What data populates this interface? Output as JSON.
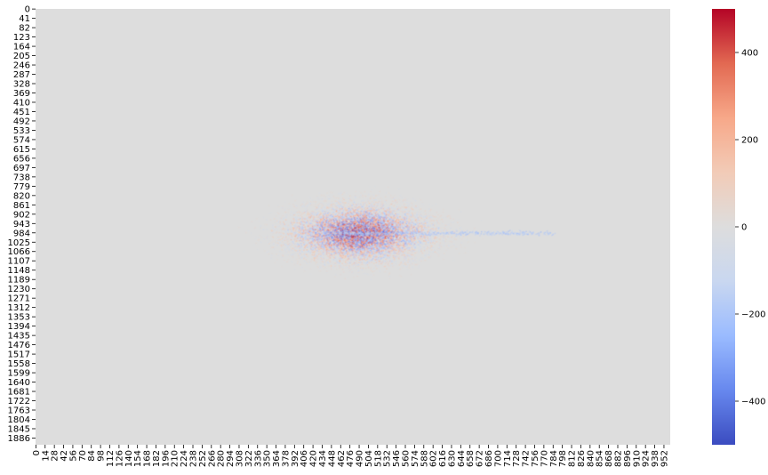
{
  "chart_data": {
    "type": "heatmap",
    "title": "",
    "xlabel": "",
    "ylabel": "",
    "rows": 1916,
    "cols": 962,
    "y_ticks": [
      "0",
      "41",
      "82",
      "123",
      "164",
      "205",
      "246",
      "287",
      "328",
      "369",
      "410",
      "451",
      "492",
      "533",
      "574",
      "615",
      "656",
      "697",
      "738",
      "779",
      "820",
      "861",
      "902",
      "943",
      "984",
      "1025",
      "1066",
      "1107",
      "1148",
      "1189",
      "1230",
      "1271",
      "1312",
      "1353",
      "1394",
      "1435",
      "1476",
      "1517",
      "1558",
      "1599",
      "1640",
      "1681",
      "1722",
      "1763",
      "1804",
      "1845",
      "1886"
    ],
    "y_tick_step": 41,
    "x_ticks": [
      "0",
      "14",
      "28",
      "42",
      "56",
      "70",
      "84",
      "98",
      "112",
      "126",
      "140",
      "154",
      "168",
      "182",
      "196",
      "210",
      "224",
      "238",
      "252",
      "266",
      "280",
      "294",
      "308",
      "322",
      "336",
      "350",
      "364",
      "378",
      "392",
      "406",
      "420",
      "434",
      "448",
      "462",
      "476",
      "490",
      "504",
      "518",
      "532",
      "546",
      "560",
      "574",
      "588",
      "602",
      "616",
      "630",
      "644",
      "658",
      "672",
      "686",
      "700",
      "714",
      "728",
      "742",
      "756",
      "770",
      "784",
      "798",
      "812",
      "826",
      "840",
      "854",
      "868",
      "882",
      "896",
      "910",
      "924",
      "938",
      "952"
    ],
    "x_tick_step": 14,
    "colorbar": {
      "min": -500,
      "max": 500,
      "ticks": [
        "400",
        "200",
        "0",
        "−200",
        "−400"
      ],
      "tick_values": [
        400,
        200,
        0,
        -200,
        -400
      ],
      "colormap": "coolwarm",
      "stops": [
        "#3b4cc0",
        "#6788ee",
        "#9abbff",
        "#c9d7f0",
        "#dddddd",
        "#f2cbb7",
        "#f7a889",
        "#e26952",
        "#b40426"
      ]
    },
    "background_value": 0,
    "background_color": "#dddddd",
    "pattern": "noisy elliptical blob of mixed positive/negative values centred near row 984, column 490; values near zero elsewhere",
    "blob_center": {
      "row": 984,
      "col": 490
    }
  }
}
